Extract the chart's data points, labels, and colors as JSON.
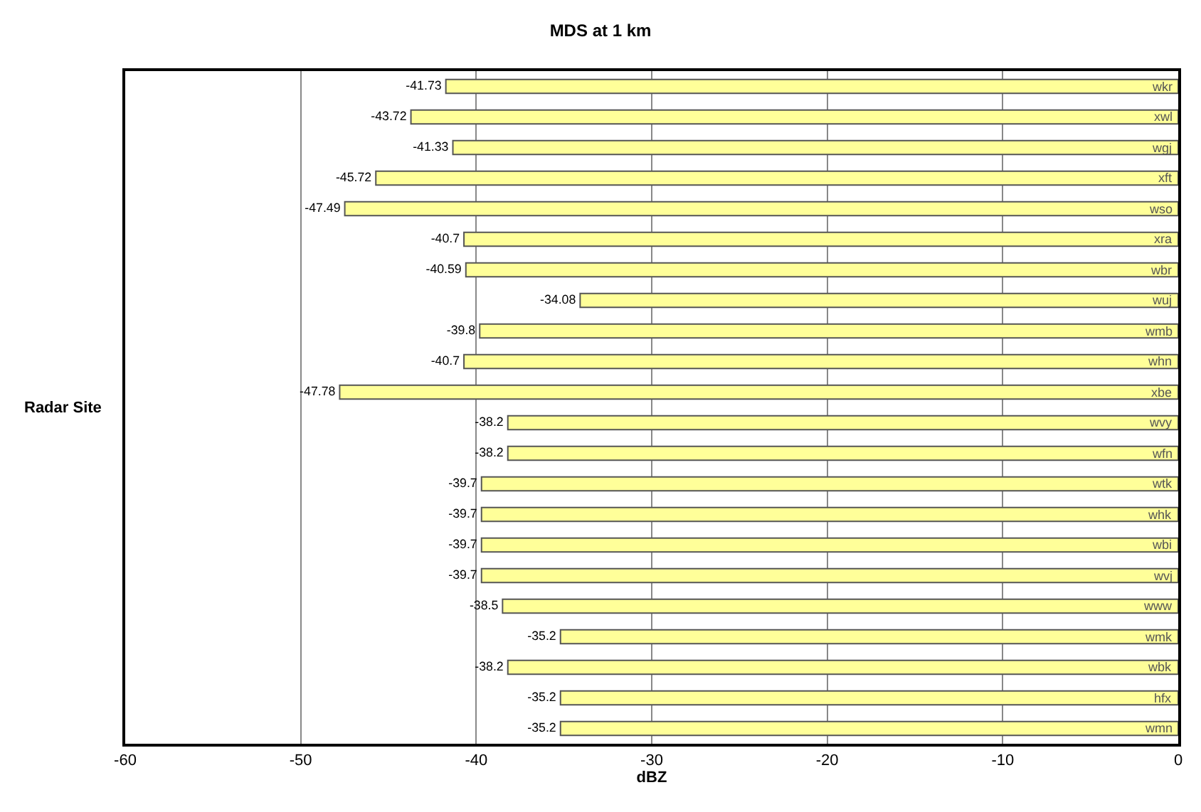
{
  "chart_data": {
    "type": "bar",
    "orientation": "horizontal",
    "title": "MDS at 1 km",
    "xlabel": "dBZ",
    "ylabel": "Radar Site",
    "categories": [
      "wkr",
      "xwl",
      "wgj",
      "xft",
      "wso",
      "xra",
      "wbr",
      "wuj",
      "wmb",
      "whn",
      "xbe",
      "wvy",
      "wfn",
      "wtk",
      "whk",
      "wbi",
      "wvj",
      "www",
      "wmk",
      "wbk",
      "hfx",
      "wmn"
    ],
    "values": [
      -41.73,
      -43.72,
      -41.33,
      -45.72,
      -47.49,
      -40.7,
      -40.59,
      -34.08,
      -39.8,
      -40.7,
      -47.78,
      -38.2,
      -38.2,
      -39.7,
      -39.7,
      -39.7,
      -39.7,
      -38.5,
      -35.2,
      -38.2,
      -35.2,
      -35.2
    ],
    "color": "#ffff99",
    "data_labels": true,
    "xlim": [
      -60,
      0
    ],
    "xticks": [
      -60,
      -50,
      -40,
      -30,
      -20,
      -10,
      0
    ],
    "grid": "x",
    "legend": false
  }
}
